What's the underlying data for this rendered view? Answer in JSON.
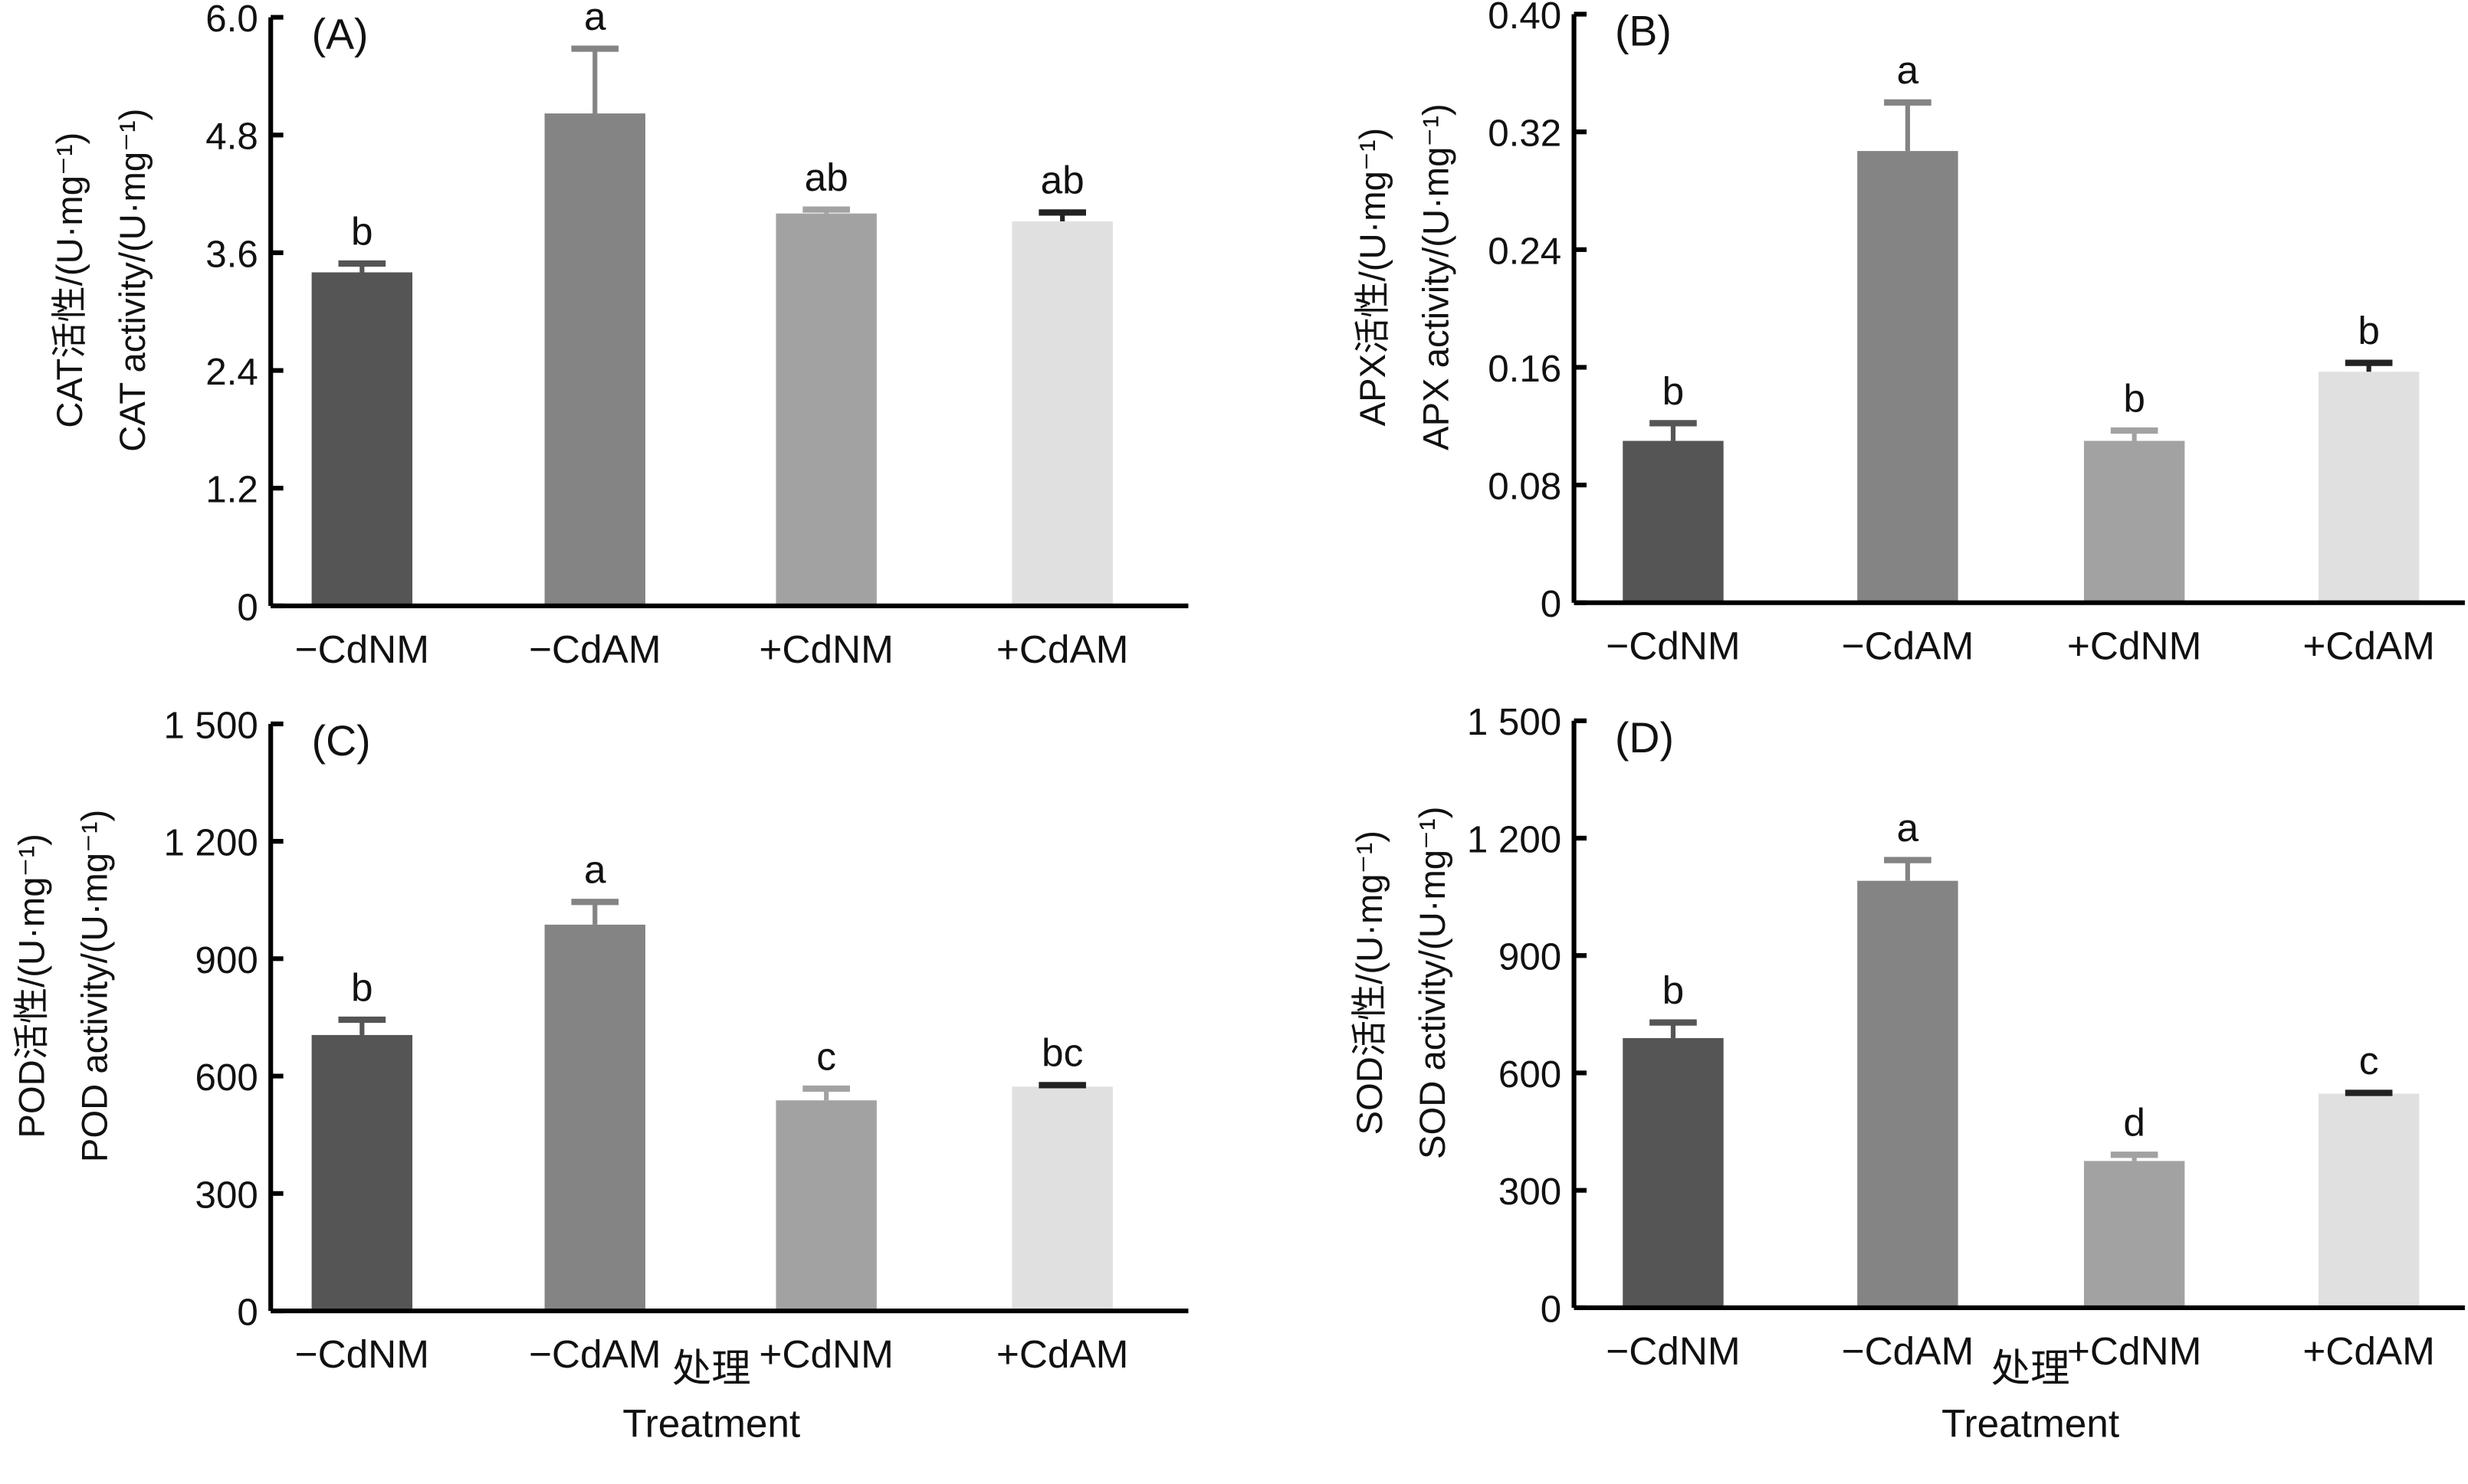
{
  "figure": {
    "xlabel_cn": "处理",
    "xlabel_en": "Treatment"
  },
  "chart_data": [
    {
      "type": "bar",
      "panel": "(A)",
      "title": "",
      "categories": [
        "−CdNM",
        "−CdAM",
        "+CdNM",
        "+CdAM"
      ],
      "values": [
        3.4,
        5.02,
        4.0,
        3.92
      ],
      "error_upper": [
        0.09,
        0.66,
        0.04,
        0.09
      ],
      "significance": [
        "b",
        "a",
        "ab",
        "ab"
      ],
      "colors": [
        "#555555",
        "#848484",
        "#a2a2a2",
        "#e0e0e0"
      ],
      "ylabel_cn": "CAT活性/(U·mg⁻¹)",
      "ylabel_en": "CAT activity/(U·mg⁻¹)",
      "yticks": [
        0,
        1.2,
        2.4,
        3.6,
        4.8,
        6.0
      ],
      "ytick_labels": [
        "0",
        "1.2",
        "2.4",
        "3.6",
        "4.8",
        "6.0"
      ],
      "ylim": [
        0,
        6.0
      ],
      "xlabel": "",
      "grid": false
    },
    {
      "type": "bar",
      "panel": "(B)",
      "title": "",
      "categories": [
        "−CdNM",
        "−CdAM",
        "+CdNM",
        "+CdAM"
      ],
      "values": [
        0.11,
        0.307,
        0.11,
        0.157
      ],
      "error_upper": [
        0.012,
        0.033,
        0.007,
        0.006
      ],
      "significance": [
        "b",
        "a",
        "b",
        "b"
      ],
      "colors": [
        "#555555",
        "#848484",
        "#a2a2a2",
        "#e0e0e0"
      ],
      "ylabel_cn": "APX活性/(U·mg⁻¹)",
      "ylabel_en": "APX activity/(U·mg⁻¹)",
      "yticks": [
        0,
        0.08,
        0.16,
        0.24,
        0.32,
        0.4
      ],
      "ytick_labels": [
        "0",
        "0.08",
        "0.16",
        "0.24",
        "0.32",
        "0.40"
      ],
      "ylim": [
        0,
        0.4
      ],
      "xlabel": "",
      "grid": false
    },
    {
      "type": "bar",
      "panel": "(C)",
      "title": "",
      "categories": [
        "−CdNM",
        "−CdAM",
        "+CdNM",
        "+CdAM"
      ],
      "values": [
        705,
        987,
        538,
        573
      ],
      "error_upper": [
        39,
        58,
        30,
        4
      ],
      "significance": [
        "b",
        "a",
        "c",
        "bc"
      ],
      "colors": [
        "#555555",
        "#848484",
        "#a2a2a2",
        "#e0e0e0"
      ],
      "ylabel_cn": "POD活性/(U·mg⁻¹)",
      "ylabel_en": "POD activity/(U·mg⁻¹)",
      "yticks": [
        0,
        300,
        600,
        900,
        1200,
        1500
      ],
      "ytick_labels": [
        "0",
        "300",
        "600",
        "900",
        "1 200",
        "1 500"
      ],
      "ylim": [
        0,
        1500
      ],
      "xlabel": "处理 Treatment",
      "grid": false
    },
    {
      "type": "bar",
      "panel": "(D)",
      "title": "",
      "categories": [
        "−CdNM",
        "−CdAM",
        "+CdNM",
        "+CdAM"
      ],
      "values": [
        689,
        1091,
        375,
        547
      ],
      "error_upper": [
        40,
        53,
        16,
        2
      ],
      "significance": [
        "b",
        "a",
        "d",
        "c"
      ],
      "colors": [
        "#555555",
        "#848484",
        "#a2a2a2",
        "#e0e0e0"
      ],
      "ylabel_cn": "SOD活性/(U·mg⁻¹)",
      "ylabel_en": "SOD activity/(U·mg⁻¹)",
      "yticks": [
        0,
        300,
        600,
        900,
        1200,
        1500
      ],
      "ytick_labels": [
        "0",
        "300",
        "600",
        "900",
        "1 200",
        "1 500"
      ],
      "ylim": [
        0,
        1500
      ],
      "xlabel": "处理 Treatment",
      "grid": false
    }
  ]
}
